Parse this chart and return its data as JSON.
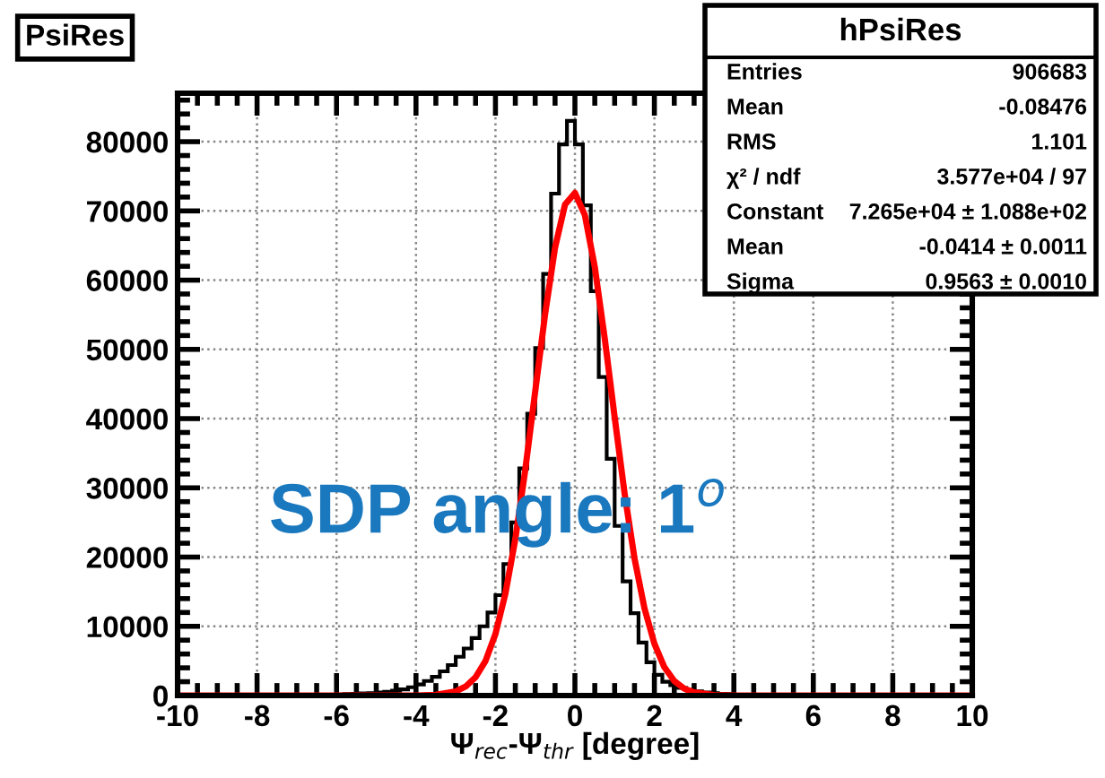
{
  "chart_data": {
    "type": "histogram",
    "title": "PsiRes",
    "xlabel": "Ψ$_{rec}$-Ψ$_{thr}$ [degree]",
    "bins": [
      -10,
      -9.8,
      -9.6,
      -9.4,
      -9.2,
      -9,
      -8.8,
      -8.6,
      -8.4,
      -8.2,
      -8,
      -7.8,
      -7.6,
      -7.4,
      -7.2,
      -7,
      -6.8,
      -6.6,
      -6.4,
      -6.2,
      -6,
      -5.8,
      -5.6,
      -5.4,
      -5.2,
      -5,
      -4.8,
      -4.6,
      -4.4,
      -4.2,
      -4,
      -3.8,
      -3.6,
      -3.4,
      -3.2,
      -3,
      -2.8,
      -2.6,
      -2.4,
      -2.2,
      -2,
      -1.8,
      -1.6,
      -1.4,
      -1.2,
      -1,
      -0.8,
      -0.6,
      -0.4,
      -0.2,
      0,
      0.2,
      0.4,
      0.6,
      0.8,
      1,
      1.2,
      1.4,
      1.6,
      1.8,
      2,
      2.2,
      2.4,
      2.6,
      2.8,
      3,
      3.2,
      3.4,
      3.6,
      3.8,
      4,
      4.2,
      4.4,
      4.6,
      4.8,
      5,
      5.2,
      5.4,
      5.6,
      5.8,
      6,
      6.2,
      6.4,
      6.6,
      6.8,
      7,
      7.2,
      7.4,
      7.6,
      7.8,
      8,
      8.2,
      8.4,
      8.6,
      8.8,
      9,
      9.2,
      9.4,
      9.6,
      9.8,
      10
    ],
    "values": [
      20,
      20,
      25,
      25,
      30,
      30,
      35,
      40,
      40,
      45,
      50,
      55,
      60,
      70,
      80,
      90,
      100,
      110,
      120,
      135,
      150,
      200,
      250,
      300,
      350,
      450,
      550,
      700,
      900,
      1200,
      1600,
      2100,
      2700,
      3500,
      4400,
      5600,
      6800,
      8300,
      10000,
      12000,
      14500,
      19000,
      25000,
      32800,
      40700,
      50200,
      60900,
      72500,
      79600,
      83000,
      79600,
      70800,
      58400,
      46000,
      34200,
      24500,
      16500,
      11900,
      7650,
      4800,
      3000,
      2000,
      1500,
      1100,
      800,
      600,
      450,
      350,
      250,
      200,
      160,
      130,
      110,
      95,
      85,
      75,
      65,
      60,
      55,
      50,
      45,
      40,
      38,
      35,
      32,
      30,
      28,
      26,
      24,
      22,
      20,
      20,
      18,
      18,
      16,
      16,
      15,
      15,
      14,
      14
    ],
    "color": "#000000",
    "series": [
      {
        "type": "line",
        "color": "#ff0000",
        "x": [
          -10,
          -5,
          -4,
          -3.5,
          -3,
          -2.75,
          -2.5,
          -2.25,
          -2,
          -1.75,
          -1.5,
          -1.25,
          -1,
          -0.75,
          -0.5,
          -0.25,
          0,
          0.25,
          0.5,
          0.75,
          1,
          1.25,
          1.5,
          1.75,
          2,
          2.25,
          2.5,
          2.75,
          3,
          3.5,
          4,
          5,
          10
        ],
        "values": [
          0,
          0,
          10,
          100,
          600,
          1300,
          2650,
          5000,
          8900,
          14700,
          22600,
          32600,
          43900,
          55100,
          64700,
          70900,
          72600,
          69400,
          61900,
          51600,
          40200,
          29200,
          19800,
          12600,
          7500,
          4100,
          2100,
          1000,
          460,
          80,
          10,
          0,
          0
        ]
      }
    ],
    "xlim": [
      -10,
      10
    ],
    "xticks": [
      -10,
      -8,
      -6,
      -4,
      -2,
      0,
      2,
      4,
      6,
      8,
      10
    ],
    "ylim": [
      0,
      87000
    ],
    "yticks": [
      0,
      10000,
      20000,
      30000,
      40000,
      50000,
      60000,
      70000,
      80000
    ],
    "grid": true,
    "annotations": [
      "SDP angle: 1$^{o}$",
      "hPsiRes",
      "Entries",
      "906683",
      "Mean",
      "-0.08476",
      "RMS",
      "1.101",
      "χ² / ndf",
      "3.577e+04 / 97",
      "Constant",
      "7.265e+04 ± 1.088e+02",
      "Mean",
      "-0.0414 ± 0.0011",
      "Sigma",
      "0.9563 ± 0.0010"
    ]
  }
}
